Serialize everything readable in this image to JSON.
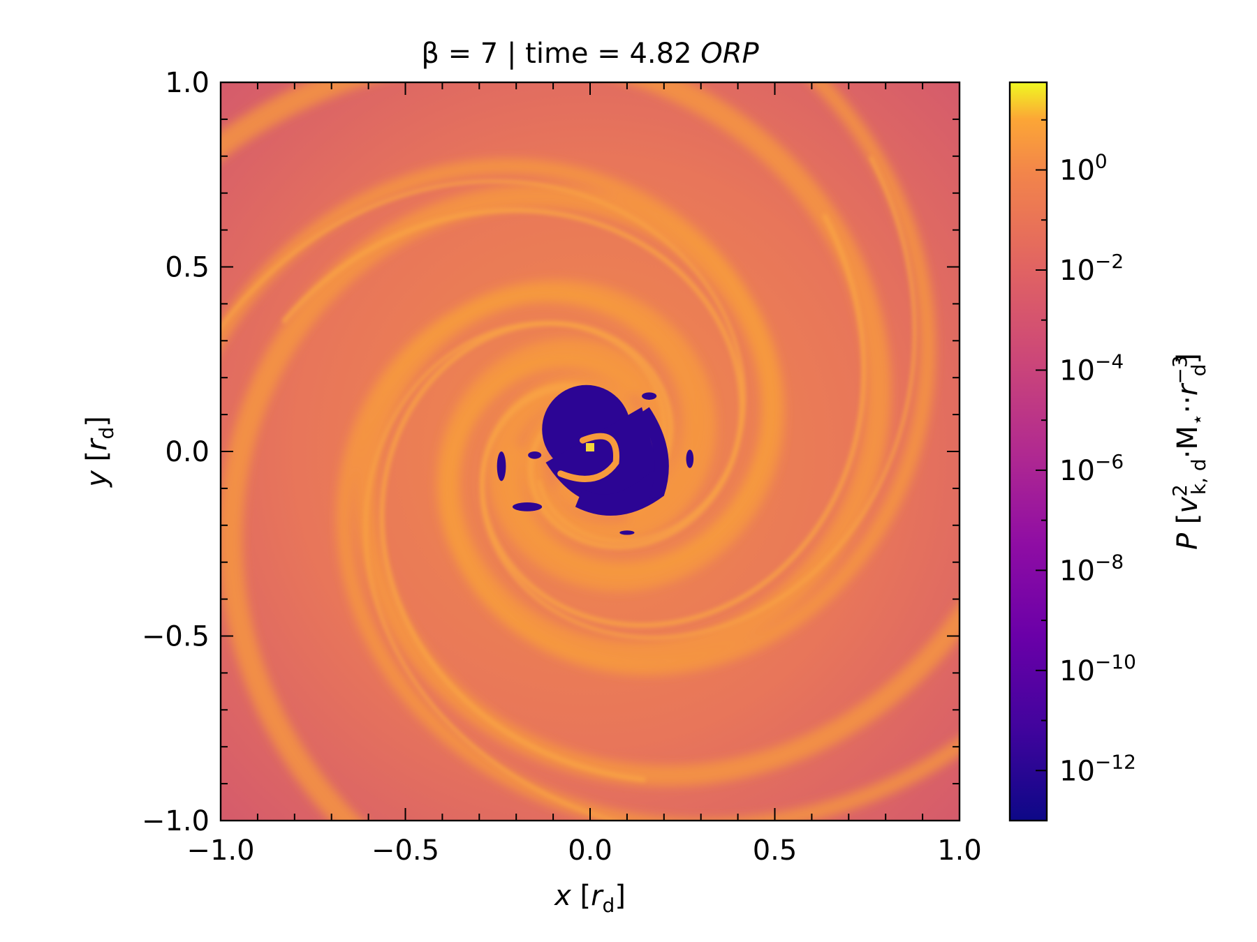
{
  "chart_data": {
    "type": "heatmap",
    "title": {
      "prefix": "β = 7 | time = 4.82 ",
      "italic_suffix": "ORP"
    },
    "xlabel": {
      "var": "x",
      "unit": "r",
      "unit_sub": "d"
    },
    "ylabel": {
      "var": "y",
      "unit": "r",
      "unit_sub": "d"
    },
    "xlim": [
      -1.0,
      1.0
    ],
    "ylim": [
      -1.0,
      1.0
    ],
    "x_ticks": [
      -1.0,
      -0.5,
      0.0,
      0.5,
      1.0
    ],
    "x_tick_labels": [
      "−1.0",
      "−0.5",
      "0.0",
      "0.5",
      "1.0"
    ],
    "y_ticks": [
      -1.0,
      -0.5,
      0.0,
      0.5,
      1.0
    ],
    "y_tick_labels": [
      "−1.0",
      "−0.5",
      "0.0",
      "0.5",
      "1.0"
    ],
    "minor_tick_step": 0.1,
    "colormap": "plasma",
    "colorbar": {
      "scale": "log",
      "vmin_exp": -13.0,
      "vmax_exp": 1.75,
      "ticks_exp": [
        0,
        -2,
        -4,
        -6,
        -8,
        -10,
        -12
      ],
      "tick_labels": [
        {
          "base": "10",
          "exp": "0"
        },
        {
          "base": "10",
          "exp": "−2"
        },
        {
          "base": "10",
          "exp": "−4"
        },
        {
          "base": "10",
          "exp": "−6"
        },
        {
          "base": "10",
          "exp": "−8"
        },
        {
          "base": "10",
          "exp": "−10"
        },
        {
          "base": "10",
          "exp": "−12"
        }
      ],
      "label": {
        "var": "P",
        "v": "v",
        "v_sup": "2",
        "v_sub": "k, d",
        "dot1": "·",
        "M": "M",
        "M_sub": "⋆",
        "dot2": "··",
        "r": "r",
        "r_sup": "−3",
        "r_sub": "d"
      }
    },
    "field": {
      "description_values": "log10 P over the disk",
      "background_exp": -3.6,
      "corner_exp": -4.6,
      "arm_exp": -1.4,
      "cavity_exp": -12.8,
      "center_exp": 1.2,
      "cavity_radius": 0.12
    },
    "colors": {
      "background": "#e06a5c",
      "arm": "#f79b3c",
      "cavity": "#2c0594",
      "center": "#f5d63a",
      "axis": "#000000"
    }
  }
}
